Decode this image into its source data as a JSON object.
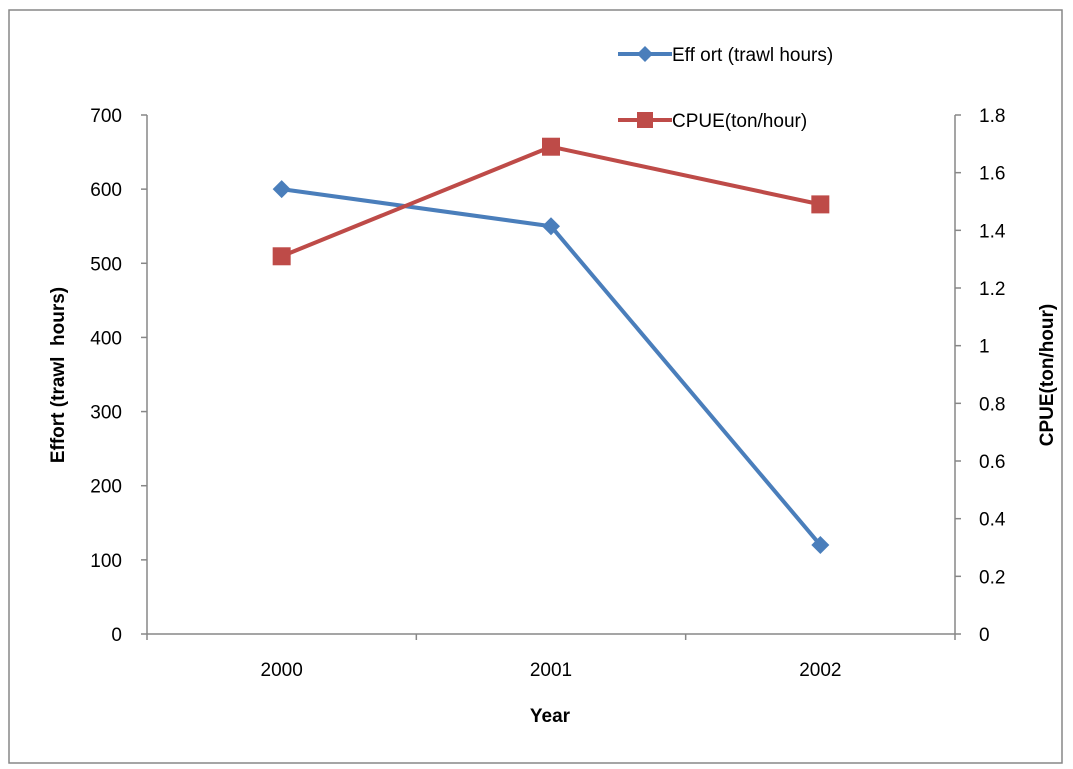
{
  "chart_data": {
    "type": "line",
    "categories": [
      "2000",
      "2001",
      "2002"
    ],
    "xlabel": "Year",
    "y_left": {
      "label": "Effort (trawl  hours)",
      "range": [
        0,
        700
      ],
      "ticks": [
        0,
        100,
        200,
        300,
        400,
        500,
        600,
        700
      ],
      "tick_labels": [
        "0",
        "100",
        "200",
        "300",
        "400",
        "500",
        "600",
        "700"
      ]
    },
    "y_right": {
      "label": "CPUE(ton/hour)",
      "range": [
        0,
        1.8
      ],
      "ticks": [
        0,
        0.2,
        0.4,
        0.6,
        0.8,
        1,
        1.2,
        1.4,
        1.6,
        1.8
      ],
      "tick_labels": [
        "0",
        "0.2",
        "0.4",
        "0.6",
        "0.8",
        "1",
        "1.2",
        "1.4",
        "1.6",
        "1.8"
      ]
    },
    "series": [
      {
        "name": "Eff ort (trawl hours)",
        "axis": "left",
        "marker": "diamond",
        "color": "#4a7ebb",
        "values": [
          600,
          550,
          120
        ]
      },
      {
        "name": "CPUE(ton/hour)",
        "axis": "right",
        "marker": "square",
        "color": "#be4b48",
        "values": [
          1.31,
          1.69,
          1.49
        ]
      }
    ],
    "grid": false,
    "legend_position": "top-right"
  }
}
